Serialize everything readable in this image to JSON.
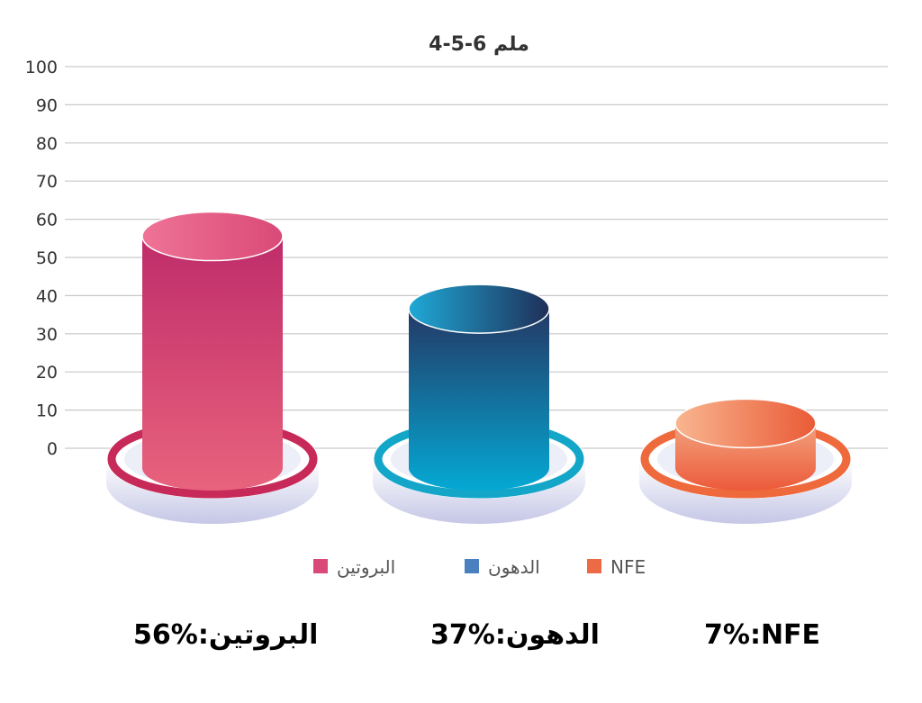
{
  "chart_data": {
    "type": "bar",
    "title": "4-5-6 ملم",
    "categories": [
      "البروتين",
      "الدهون",
      "NFE"
    ],
    "values": [
      56,
      37,
      7
    ],
    "ylim": [
      0,
      100
    ],
    "y_ticks": [
      "0",
      "10",
      "20",
      "30",
      "40",
      "50",
      "60",
      "70",
      "80",
      "90",
      "100"
    ],
    "grid": true,
    "legend_position": "bottom",
    "legend": [
      {
        "label": "البروتين",
        "color": "#d94a78"
      },
      {
        "label": "الدهون",
        "color": "#4a7fc0"
      },
      {
        "label": "NFE",
        "color": "#ec6a45"
      }
    ],
    "series_styles": [
      {
        "top": "#bf2c6a",
        "bottom": "#e8637d",
        "cap_light": "#ef7396",
        "cap_dark": "#d94a78",
        "ring": "#c72a58"
      },
      {
        "top": "#243865",
        "bottom": "#04a9d4",
        "cap_light": "#1fa9d6",
        "cap_dark": "#1f2f58",
        "ring": "#14a6c8"
      },
      {
        "top": "#f2a27e",
        "bottom": "#ec5a3a",
        "cap_light": "#f8b690",
        "cap_dark": "#ea5a36",
        "ring": "#ee6a3c"
      }
    ]
  },
  "summary": [
    {
      "label": "البروتين",
      "sep": " : ",
      "value": "56%"
    },
    {
      "label": "الدهون",
      "sep": " : ",
      "value": "37%"
    },
    {
      "label": "NFE",
      "sep": " : ",
      "value": "7%"
    }
  ]
}
